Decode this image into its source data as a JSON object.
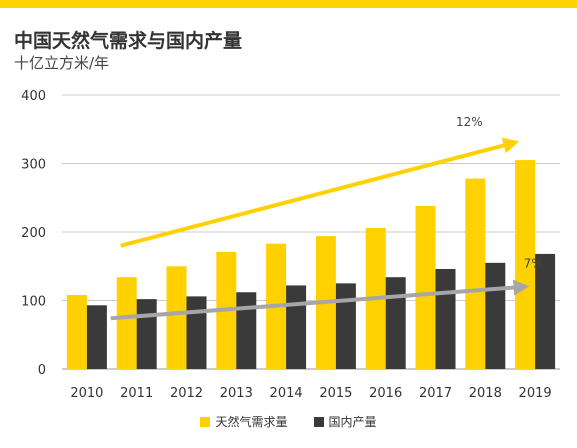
{
  "colors": {
    "accent": "#ffd100",
    "demand": "#ffd100",
    "production": "#3a3a3a",
    "grid": "#cccccc",
    "trend_demand": "#ffd100",
    "trend_production": "#a6a6a6"
  },
  "chart_data": {
    "type": "bar",
    "title": "中国天然气需求与国内产量",
    "subtitle": "十亿立方米/年",
    "xlabel": "",
    "ylabel": "",
    "ylim": [
      0,
      400
    ],
    "yticks": [
      "0",
      "100",
      "200",
      "300",
      "400"
    ],
    "grid": true,
    "legend_position": "bottom",
    "categories": [
      "2010",
      "2011",
      "2012",
      "2013",
      "2014",
      "2015",
      "2016",
      "2017",
      "2018",
      "2019"
    ],
    "series": [
      {
        "name": "天然气需求量",
        "values": [
          108,
          134,
          150,
          171,
          183,
          194,
          206,
          238,
          278,
          305
        ]
      },
      {
        "name": "国内产量",
        "values": [
          93,
          102,
          106,
          112,
          122,
          125,
          134,
          146,
          155,
          168
        ]
      }
    ],
    "annotations": [
      {
        "text": "12%",
        "series": "天然气需求量"
      },
      {
        "text": "7%",
        "series": "国内产量"
      }
    ]
  }
}
